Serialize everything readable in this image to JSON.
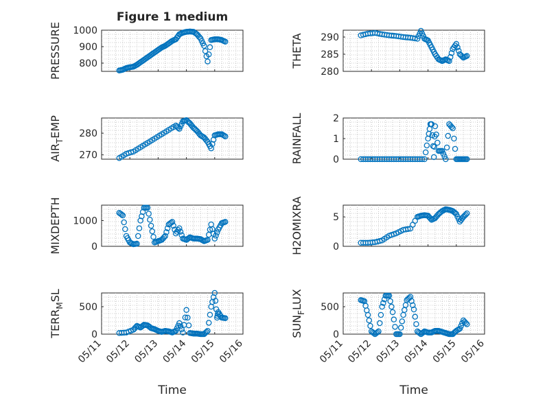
{
  "figure": {
    "title": "Figure 1 medium",
    "xlabel": "Time",
    "marker_color": "#0072BD"
  },
  "chart_data": [
    {
      "type": "scatter",
      "ylabel_main": "PRESSURE",
      "ylabel_sub": "",
      "ylim": [
        750,
        1000
      ],
      "yticks": [
        800,
        900,
        1000
      ],
      "xticks": [],
      "x": [
        "05/11 15:00",
        "05/11 18:00",
        "05/11 21:00",
        "05/12 00:00",
        "05/12 03:00",
        "05/12 06:00",
        "05/12 09:00",
        "05/12 12:00",
        "05/12 15:00",
        "05/12 18:00",
        "05/12 21:00",
        "05/13 00:00",
        "05/13 03:00",
        "05/13 06:00",
        "05/13 09:00",
        "05/13 12:00",
        "05/13 15:00",
        "05/13 18:00",
        "05/13 21:00",
        "05/14 00:00",
        "05/14 03:00",
        "05/14 06:00",
        "05/14 09:00",
        "05/14 12:00",
        "05/14 15:00",
        "05/14 18:00",
        "05/14 21:00",
        "05/15 00:00",
        "05/15 03:00",
        "05/15 06:00",
        "05/15 09:00"
      ],
      "y": [
        755,
        760,
        770,
        775,
        778,
        790,
        805,
        820,
        835,
        850,
        865,
        880,
        895,
        905,
        920,
        935,
        945,
        975,
        985,
        990,
        992,
        990,
        975,
        950,
        905,
        810,
        940,
        945,
        945,
        940,
        930
      ]
    },
    {
      "type": "scatter",
      "ylabel_main": "THETA",
      "ylabel_sub": "",
      "ylim": [
        280,
        292
      ],
      "yticks": [
        280,
        285,
        290
      ],
      "xticks": [],
      "x": [
        "05/11 15:00",
        "05/11 21:00",
        "05/12 03:00",
        "05/12 09:00",
        "05/12 15:00",
        "05/12 21:00",
        "05/13 03:00",
        "05/13 09:00",
        "05/13 15:00",
        "05/13 18:00",
        "05/13 21:00",
        "05/14 00:00",
        "05/14 03:00",
        "05/14 06:00",
        "05/14 09:00",
        "05/14 12:00",
        "05/14 15:00",
        "05/14 18:00",
        "05/14 21:00",
        "05/15 00:00",
        "05/15 03:00",
        "05/15 06:00",
        "05/15 09:00"
      ],
      "y": [
        290.5,
        291.0,
        291.2,
        290.8,
        290.5,
        290.3,
        290.0,
        289.8,
        289.5,
        291.8,
        289.5,
        289.0,
        287.0,
        285.0,
        283.5,
        283.0,
        283.5,
        283.0,
        286.5,
        288.0,
        285.0,
        284.0,
        284.5
      ]
    },
    {
      "type": "scatter",
      "ylabel_main": "AIR",
      "ylabel_sub": "T",
      "ylabel_rest": "EMP",
      "ylim": [
        268,
        287
      ],
      "yticks": [
        270,
        280
      ],
      "xticks": [],
      "x": [
        "05/11 15:00",
        "05/11 21:00",
        "05/12 03:00",
        "05/12 09:00",
        "05/12 15:00",
        "05/12 21:00",
        "05/13 03:00",
        "05/13 09:00",
        "05/13 15:00",
        "05/13 18:00",
        "05/13 21:00",
        "05/14 00:00",
        "05/14 03:00",
        "05/14 06:00",
        "05/14 09:00",
        "05/14 12:00",
        "05/14 15:00",
        "05/14 18:00",
        "05/14 21:00",
        "05/15 00:00",
        "05/15 03:00",
        "05/15 06:00",
        "05/15 09:00"
      ],
      "y": [
        268.5,
        270.5,
        271.5,
        273.5,
        275.5,
        277.5,
        279.5,
        281.5,
        283.5,
        282.0,
        285.5,
        286.0,
        284.5,
        282.5,
        281.0,
        279.0,
        278.0,
        276.0,
        273.0,
        279.0,
        279.5,
        279.5,
        278.5
      ]
    },
    {
      "type": "scatter",
      "ylabel_main": "RAINFALL",
      "ylabel_sub": "",
      "ylim": [
        0,
        2
      ],
      "yticks": [
        0,
        1,
        2
      ],
      "xticks": [],
      "x": [
        "05/11 15:00",
        "05/11 21:00",
        "05/12 03:00",
        "05/12 09:00",
        "05/12 15:00",
        "05/12 21:00",
        "05/13 03:00",
        "05/13 09:00",
        "05/13 15:00",
        "05/13 21:00",
        "05/14 00:00",
        "05/14 02:00",
        "05/14 03:00",
        "05/14 05:00",
        "05/14 06:00",
        "05/14 09:00",
        "05/14 12:00",
        "05/14 15:00",
        "05/14 18:00",
        "05/14 21:00",
        "05/15 00:00",
        "05/15 03:00",
        "05/15 06:00",
        "05/15 09:00"
      ],
      "y": [
        0,
        0,
        0,
        0,
        0,
        0,
        0,
        0,
        0,
        0,
        1.0,
        1.7,
        1.7,
        0.1,
        1.6,
        0.4,
        0.4,
        0.0,
        1.7,
        1.5,
        0.0,
        0.0,
        0.0,
        0.0
      ]
    },
    {
      "type": "scatter",
      "ylabel_main": "MIXDEPTH",
      "ylabel_sub": "",
      "ylim": [
        0,
        1600
      ],
      "yticks": [
        0,
        1000
      ],
      "xticks": [],
      "x": [
        "05/11 15:00",
        "05/11 18:00",
        "05/11 21:00",
        "05/12 00:00",
        "05/12 03:00",
        "05/12 06:00",
        "05/12 09:00",
        "05/12 12:00",
        "05/12 15:00",
        "05/12 18:00",
        "05/12 21:00",
        "05/13 00:00",
        "05/13 03:00",
        "05/13 06:00",
        "05/13 09:00",
        "05/13 12:00",
        "05/13 15:00",
        "05/13 18:00",
        "05/13 21:00",
        "05/14 00:00",
        "05/14 03:00",
        "05/14 06:00",
        "05/14 09:00",
        "05/14 12:00",
        "05/14 15:00",
        "05/14 18:00",
        "05/14 21:00",
        "05/15 00:00",
        "05/15 03:00",
        "05/15 06:00",
        "05/15 09:00"
      ],
      "y": [
        1300,
        1200,
        400,
        150,
        80,
        100,
        1000,
        1500,
        1500,
        800,
        150,
        200,
        250,
        400,
        850,
        950,
        500,
        700,
        300,
        250,
        350,
        300,
        300,
        280,
        200,
        250,
        850,
        300,
        650,
        900,
        950
      ]
    },
    {
      "type": "scatter",
      "ylabel_main": "H2OMIXRA",
      "ylabel_sub": "",
      "ylim": [
        0,
        7
      ],
      "yticks": [
        0,
        5
      ],
      "xticks": [],
      "x": [
        "05/11 15:00",
        "05/11 21:00",
        "05/12 03:00",
        "05/12 09:00",
        "05/12 15:00",
        "05/12 21:00",
        "05/13 03:00",
        "05/13 09:00",
        "05/13 15:00",
        "05/13 18:00",
        "05/13 21:00",
        "05/14 00:00",
        "05/14 03:00",
        "05/14 06:00",
        "05/14 09:00",
        "05/14 12:00",
        "05/14 15:00",
        "05/14 18:00",
        "05/14 21:00",
        "05/15 00:00",
        "05/15 03:00",
        "05/15 06:00",
        "05/15 09:00"
      ],
      "y": [
        0.6,
        0.6,
        0.7,
        1.0,
        1.8,
        2.2,
        2.8,
        3.0,
        5.0,
        5.2,
        5.3,
        5.2,
        4.5,
        4.8,
        5.5,
        6.0,
        6.3,
        6.2,
        6.0,
        5.5,
        4.2,
        5.0,
        5.6
      ]
    },
    {
      "type": "scatter",
      "ylabel_main": "TERR",
      "ylabel_sub": "M",
      "ylabel_rest": "SL",
      "ylim": [
        0,
        750
      ],
      "yticks": [
        0,
        500
      ],
      "xticks": [
        "05/11",
        "05/12",
        "05/13",
        "05/14",
        "05/15",
        "05/16"
      ],
      "x": [
        "05/11 15:00",
        "05/11 21:00",
        "05/12 03:00",
        "05/12 06:00",
        "05/12 09:00",
        "05/12 12:00",
        "05/12 15:00",
        "05/12 18:00",
        "05/12 21:00",
        "05/13 00:00",
        "05/13 03:00",
        "05/13 06:00",
        "05/13 09:00",
        "05/13 12:00",
        "05/13 15:00",
        "05/13 18:00",
        "05/13 21:00",
        "05/14 00:00",
        "05/14 03:00",
        "05/14 06:00",
        "05/14 09:00",
        "05/14 12:00",
        "05/14 15:00",
        "05/14 18:00",
        "05/14 21:00",
        "05/15 00:00",
        "05/15 02:00",
        "05/15 03:00",
        "05/15 06:00",
        "05/15 09:00"
      ],
      "y": [
        20,
        30,
        80,
        150,
        120,
        170,
        160,
        110,
        90,
        60,
        40,
        60,
        50,
        30,
        60,
        200,
        30,
        440,
        20,
        10,
        10,
        0,
        0,
        60,
        500,
        760,
        300,
        400,
        300,
        290
      ]
    },
    {
      "type": "scatter",
      "ylabel_main": "SUN",
      "ylabel_sub": "F",
      "ylabel_rest": "LUX",
      "ylim": [
        0,
        750
      ],
      "yticks": [
        0,
        500
      ],
      "xticks": [
        "05/11",
        "05/12",
        "05/13",
        "05/14",
        "05/15",
        "05/16"
      ],
      "x": [
        "05/11 15:00",
        "05/11 18:00",
        "05/11 21:00",
        "05/12 00:00",
        "05/12 03:00",
        "05/12 06:00",
        "05/12 09:00",
        "05/12 12:00",
        "05/12 15:00",
        "05/12 18:00",
        "05/12 21:00",
        "05/13 00:00",
        "05/13 03:00",
        "05/13 06:00",
        "05/13 09:00",
        "05/13 12:00",
        "05/13 15:00",
        "05/13 18:00",
        "05/13 21:00",
        "05/14 00:00",
        "05/14 03:00",
        "05/14 06:00",
        "05/14 09:00",
        "05/14 12:00",
        "05/14 15:00",
        "05/14 18:00",
        "05/14 21:00",
        "05/15 00:00",
        "05/15 03:00",
        "05/15 06:00",
        "05/15 09:00"
      ],
      "y": [
        620,
        600,
        350,
        50,
        0,
        50,
        500,
        700,
        700,
        400,
        0,
        0,
        350,
        620,
        680,
        450,
        50,
        0,
        50,
        30,
        30,
        60,
        60,
        40,
        20,
        0,
        0,
        60,
        100,
        250,
        180
      ]
    }
  ]
}
